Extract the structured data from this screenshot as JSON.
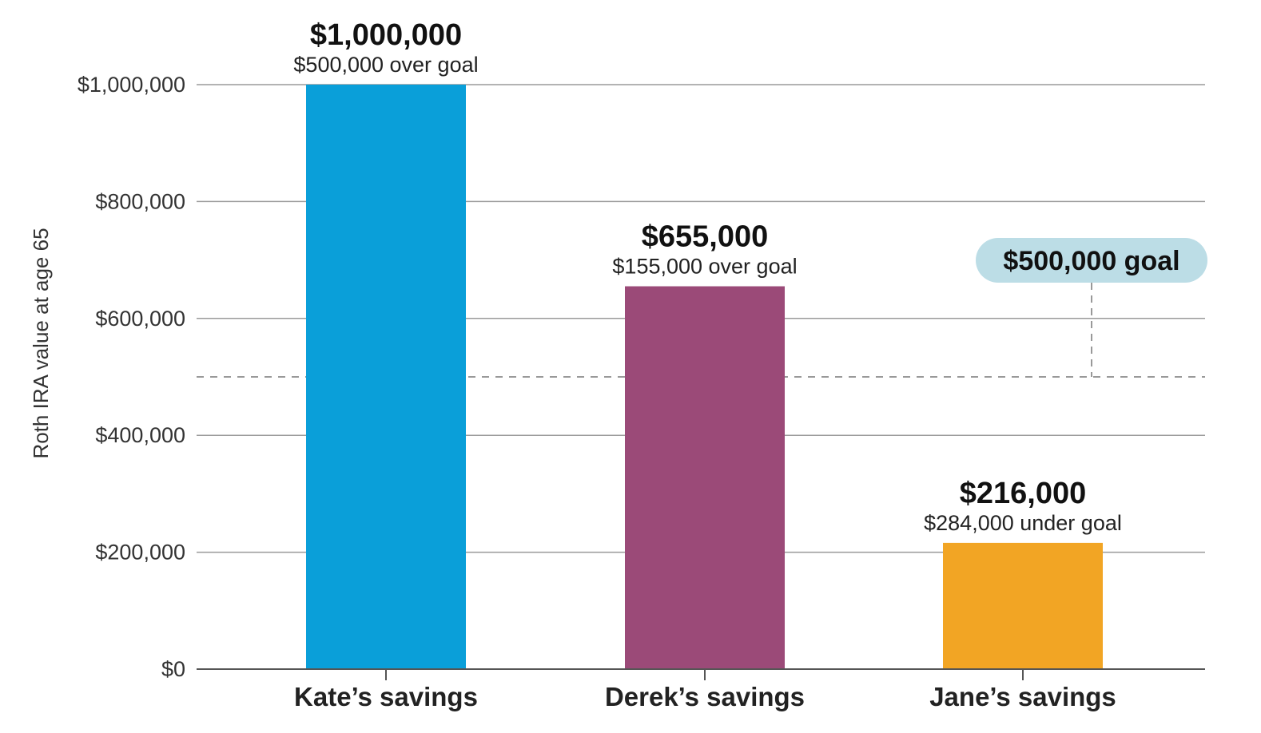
{
  "chart_data": {
    "type": "bar",
    "ylabel": "Roth IRA value at age 65",
    "ylim": [
      0,
      1000000
    ],
    "yticks": [
      0,
      200000,
      400000,
      600000,
      800000,
      1000000
    ],
    "ytick_labels": [
      "$0",
      "$200,000",
      "$400,000",
      "$600,000",
      "$800,000",
      "$1,000,000"
    ],
    "grid": true,
    "categories": [
      "Kate’s savings",
      "Derek’s savings",
      "Jane’s savings"
    ],
    "values": [
      1000000,
      655000,
      216000
    ],
    "colors": [
      "#0a9fd9",
      "#9b4a78",
      "#f2a524"
    ],
    "value_labels": [
      "$1,000,000",
      "$655,000",
      "$216,000"
    ],
    "notes": [
      "$500,000 over goal",
      "$155,000 over goal",
      "$284,000 under goal"
    ],
    "goal": {
      "value": 500000,
      "label": "$500,000 goal",
      "badge_color": "#bcdde6",
      "line_color": "#999999"
    },
    "gridline_color": "#9a9a9a"
  }
}
